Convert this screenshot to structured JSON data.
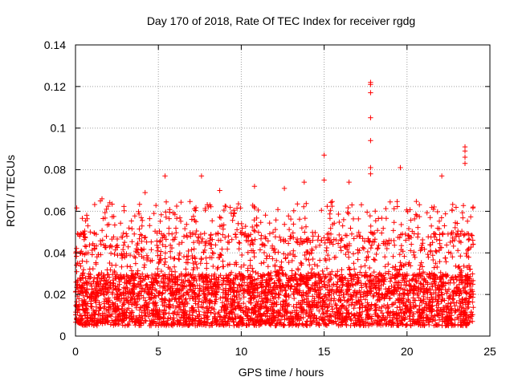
{
  "chart_data": {
    "type": "scatter",
    "title": "Day 170 of 2018, Rate Of TEC Index for receiver rgdg",
    "xlabel": "GPS time / hours",
    "ylabel": "ROTI / TECUs",
    "xlim": [
      0,
      25
    ],
    "ylim": [
      0,
      0.14
    ],
    "xticks": [
      0,
      5,
      10,
      15,
      20,
      25
    ],
    "xtick_labels": [
      "0",
      "5",
      "10",
      "15",
      "20",
      "25"
    ],
    "yticks": [
      0,
      0.02,
      0.04,
      0.06,
      0.08,
      0.1,
      0.12,
      0.14
    ],
    "ytick_labels": [
      "0",
      "0.02",
      "0.04",
      "0.06",
      "0.08",
      "0.1",
      "0.12",
      "0.14"
    ],
    "grid": true,
    "marker": "+",
    "color": "#ff0000",
    "data_range_x": [
      0,
      24
    ],
    "typical_y_range": [
      0.005,
      0.05
    ],
    "series": [
      {
        "name": "ROTI",
        "notable_points": [
          {
            "x": 1.6,
            "y": 0.066
          },
          {
            "x": 5.4,
            "y": 0.077
          },
          {
            "x": 7.6,
            "y": 0.077
          },
          {
            "x": 8.7,
            "y": 0.07
          },
          {
            "x": 10.8,
            "y": 0.072
          },
          {
            "x": 13.8,
            "y": 0.074
          },
          {
            "x": 15.0,
            "y": 0.087
          },
          {
            "x": 15.0,
            "y": 0.075
          },
          {
            "x": 16.5,
            "y": 0.074
          },
          {
            "x": 17.8,
            "y": 0.122
          },
          {
            "x": 17.8,
            "y": 0.121
          },
          {
            "x": 17.8,
            "y": 0.117
          },
          {
            "x": 17.8,
            "y": 0.105
          },
          {
            "x": 17.8,
            "y": 0.094
          },
          {
            "x": 17.8,
            "y": 0.081
          },
          {
            "x": 17.8,
            "y": 0.078
          },
          {
            "x": 19.6,
            "y": 0.081
          },
          {
            "x": 22.1,
            "y": 0.077
          },
          {
            "x": 23.5,
            "y": 0.091
          },
          {
            "x": 23.5,
            "y": 0.089
          },
          {
            "x": 23.5,
            "y": 0.086
          },
          {
            "x": 23.5,
            "y": 0.083
          },
          {
            "x": 4.2,
            "y": 0.069
          },
          {
            "x": 12.6,
            "y": 0.071
          }
        ]
      }
    ]
  }
}
